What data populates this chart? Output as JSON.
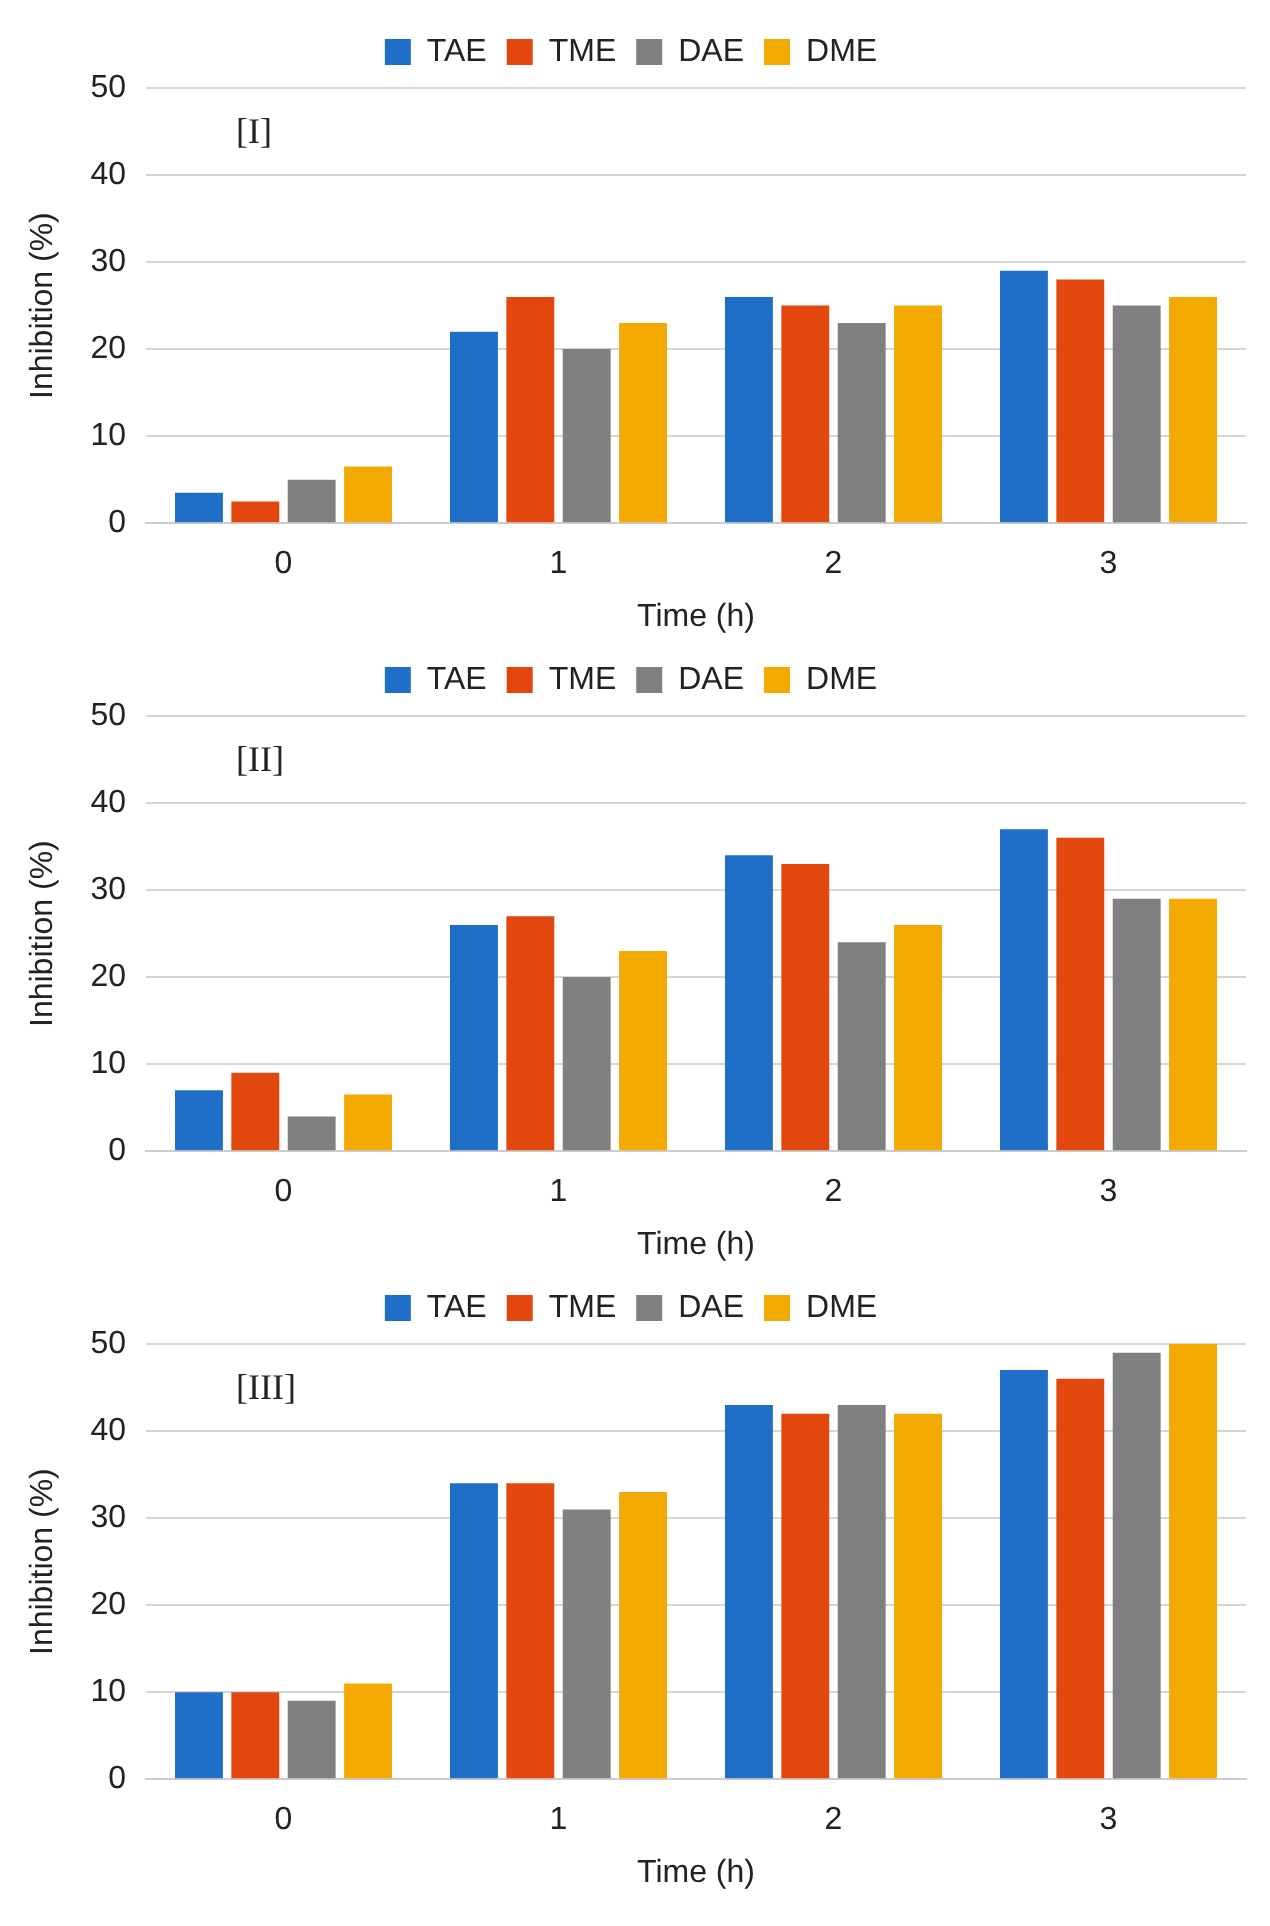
{
  "chart_data": [
    {
      "type": "bar",
      "annotations": [
        "[I]"
      ],
      "xlabel": "Time (h)",
      "ylabel": "Inhibition (%)",
      "categories": [
        "0",
        "1",
        "2",
        "3"
      ],
      "ylim": [
        0,
        50
      ],
      "yticks": [
        0,
        10,
        20,
        30,
        40,
        50
      ],
      "grid": "y",
      "legend": "top",
      "series": [
        {
          "name": "TAE",
          "color": "#1f6fc8",
          "values": [
            3.5,
            22,
            26,
            29
          ]
        },
        {
          "name": "TME",
          "color": "#e2470e",
          "values": [
            2.5,
            26,
            25,
            28
          ]
        },
        {
          "name": "DAE",
          "color": "#808080",
          "values": [
            5,
            20,
            23,
            25
          ]
        },
        {
          "name": "DME",
          "color": "#f4a900",
          "values": [
            6.5,
            23,
            25,
            26
          ]
        }
      ]
    },
    {
      "type": "bar",
      "annotations": [
        "[II]"
      ],
      "xlabel": "Time (h)",
      "ylabel": "Inhibition (%)",
      "categories": [
        "0",
        "1",
        "2",
        "3"
      ],
      "ylim": [
        0,
        50
      ],
      "yticks": [
        0,
        10,
        20,
        30,
        40,
        50
      ],
      "grid": "y",
      "legend": "top",
      "series": [
        {
          "name": "TAE",
          "color": "#1f6fc8",
          "values": [
            7,
            26,
            34,
            37
          ]
        },
        {
          "name": "TME",
          "color": "#e2470e",
          "values": [
            9,
            27,
            33,
            36
          ]
        },
        {
          "name": "DAE",
          "color": "#808080",
          "values": [
            4,
            20,
            24,
            29
          ]
        },
        {
          "name": "DME",
          "color": "#f4a900",
          "values": [
            6.5,
            23,
            26,
            29
          ]
        }
      ]
    },
    {
      "type": "bar",
      "annotations": [
        "[III]"
      ],
      "xlabel": "Time (h)",
      "ylabel": "Inhibition (%)",
      "categories": [
        "0",
        "1",
        "2",
        "3"
      ],
      "ylim": [
        0,
        50
      ],
      "yticks": [
        0,
        10,
        20,
        30,
        40,
        50
      ],
      "grid": "y",
      "legend": "top",
      "series": [
        {
          "name": "TAE",
          "color": "#1f6fc8",
          "values": [
            10,
            34,
            43,
            47
          ]
        },
        {
          "name": "TME",
          "color": "#e2470e",
          "values": [
            10,
            34,
            42,
            46
          ]
        },
        {
          "name": "DAE",
          "color": "#808080",
          "values": [
            9,
            31,
            43,
            49
          ]
        },
        {
          "name": "DME",
          "color": "#f4a900",
          "values": [
            11,
            33,
            42,
            50
          ]
        }
      ]
    }
  ]
}
